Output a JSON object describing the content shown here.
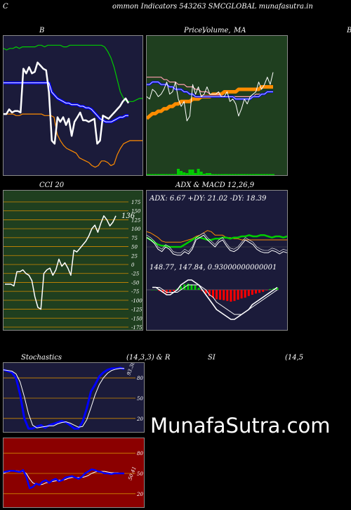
{
  "header": {
    "left_char": "C",
    "title": "ommon  Indicators 543263 SMCGLOBAL  munafasutra.in"
  },
  "labels": {
    "bb": "B",
    "price": "Price,",
    "volume": "Volume,",
    "ma": "MA",
    "right_edge": "B",
    "cci": "CCI 20",
    "adx_macd": "ADX  & MACD 12,26,9",
    "stoch": "Stochastics",
    "stoch_params": "(14,3,3) & R",
    "rsi": "SI",
    "rsi_params": "(14,5"
  },
  "watermark": "MunafaSutra.com",
  "colors": {
    "navy": "#1b1b3a",
    "green_panel": "#1f3f1f",
    "red_panel": "#8b0000",
    "orange": "#ff8c00",
    "blue": "#0000ff",
    "green_line": "#00cc00"
  },
  "chart_data": [
    {
      "type": "line",
      "id": "bollinger",
      "x": [
        1,
        2,
        3,
        4,
        5,
        6,
        7,
        8,
        9,
        10,
        11,
        12,
        13,
        14,
        15,
        16,
        17,
        18,
        19,
        20,
        21,
        22,
        23,
        24,
        25,
        26,
        27,
        28,
        29,
        30,
        31,
        32,
        33,
        34,
        35,
        36,
        37,
        38,
        39,
        40,
        41,
        42,
        43,
        44,
        45
      ],
      "series": [
        {
          "role": "price",
          "values": [
            150,
            150,
            153,
            151,
            152,
            152,
            151,
            179,
            176,
            180,
            176,
            177,
            183,
            181,
            179,
            178,
            164,
            133,
            131,
            148,
            145,
            148,
            143,
            147,
            136,
            145,
            148,
            151,
            146,
            146,
            145,
            146,
            147,
            131,
            133,
            149,
            148,
            147,
            149,
            151,
            153,
            155,
            158,
            160,
            157
          ]
        },
        {
          "role": "upper",
          "values": [
            192,
            191,
            192,
            192,
            193,
            192,
            193,
            193,
            193,
            193,
            193,
            194,
            194,
            193,
            194,
            194,
            194,
            194,
            194,
            193,
            193,
            194,
            194,
            194,
            194,
            194,
            194,
            194,
            194,
            194,
            194,
            194,
            193,
            190,
            186,
            180,
            172,
            164,
            160,
            158,
            158,
            158,
            159,
            160,
            160
          ]
        },
        {
          "role": "middle",
          "values": [
            170,
            170,
            170,
            170,
            170,
            170,
            170,
            170,
            170,
            170,
            170,
            170,
            170,
            170,
            170,
            170,
            170,
            164,
            162,
            160,
            159,
            158,
            157,
            157,
            156,
            156,
            156,
            155,
            155,
            154,
            154,
            153,
            151,
            149,
            147,
            146,
            145,
            145,
            145,
            146,
            147,
            148,
            148,
            149,
            149
          ]
        },
        {
          "role": "lower",
          "values": [
            150,
            150,
            150,
            150,
            149,
            149,
            150,
            150,
            150,
            150,
            150,
            150,
            150,
            149,
            149,
            149,
            148,
            137,
            133,
            130,
            128,
            127,
            126,
            125,
            122,
            121,
            120,
            119,
            117,
            116,
            117,
            120,
            120,
            119,
            117,
            118,
            124,
            128,
            131,
            132,
            133,
            133,
            133,
            133,
            133
          ]
        }
      ]
    },
    {
      "type": "line",
      "id": "price_ma",
      "series": [
        {
          "role": "price",
          "values": [
            150,
            149,
            153,
            152,
            150,
            151,
            153,
            156,
            151,
            152,
            156,
            149,
            146,
            148,
            140,
            142,
            155,
            151,
            154,
            150,
            151,
            154,
            151,
            151,
            151,
            152,
            150,
            150,
            152,
            148,
            149,
            147,
            142,
            145,
            149,
            147,
            150,
            151,
            152,
            156,
            153,
            155,
            158,
            155,
            160
          ]
        },
        {
          "role": "ma_5",
          "values": [
            155,
            155,
            156,
            156,
            156,
            155,
            155,
            155,
            154,
            154,
            153,
            153,
            153,
            152,
            152,
            151,
            151,
            150,
            150,
            150,
            150,
            150,
            150,
            150,
            150,
            150,
            150,
            150,
            150,
            150,
            150,
            149,
            149,
            149,
            149,
            149,
            149,
            150,
            150,
            150,
            151,
            151,
            152,
            152,
            152
          ]
        },
        {
          "role": "ma_10",
          "values": [
            158,
            158,
            158,
            158,
            158,
            158,
            157,
            157,
            156,
            156,
            156,
            155,
            155,
            155,
            154,
            154,
            154,
            153,
            153,
            152,
            152,
            152,
            151,
            151,
            151,
            151,
            150,
            150,
            150,
            150,
            150,
            150,
            150,
            150,
            150,
            150,
            150,
            150,
            151,
            151,
            151,
            151,
            152,
            152,
            152
          ]
        },
        {
          "role": "ma_50",
          "values": [
            141,
            142,
            143,
            143,
            144,
            144,
            145,
            145,
            146,
            146,
            147,
            147,
            148,
            148,
            148,
            148,
            149,
            149,
            149,
            150,
            150,
            150,
            150,
            151,
            151,
            151,
            151,
            152,
            152,
            152,
            152,
            152,
            153,
            153,
            153,
            153,
            153,
            153,
            153,
            153,
            154,
            154,
            154,
            154,
            154
          ]
        },
        {
          "role": "volume",
          "values": [
            0,
            0,
            0,
            0,
            0,
            0,
            0,
            0,
            0,
            0,
            0,
            9,
            6,
            4,
            3,
            8,
            8,
            3,
            9,
            5,
            2,
            3,
            3,
            1,
            0,
            0,
            0,
            0,
            0,
            0,
            0,
            0,
            0,
            0,
            0,
            0,
            0,
            0,
            0,
            0,
            0,
            0,
            0,
            0,
            0
          ]
        }
      ]
    },
    {
      "type": "line",
      "id": "cci",
      "ylim": [
        -175,
        175
      ],
      "yticks": [
        175,
        150,
        125,
        100,
        75,
        50,
        25,
        0,
        -25,
        -50,
        -75,
        -100,
        -125,
        -150,
        -175
      ],
      "value_label": "136",
      "series": [
        {
          "role": "cci",
          "values": [
            -55,
            -55,
            -55,
            -60,
            -20,
            -20,
            -15,
            -25,
            -30,
            -45,
            -90,
            -120,
            -125,
            -25,
            -15,
            -10,
            -30,
            -15,
            15,
            -5,
            5,
            -10,
            -30,
            40,
            35,
            45,
            55,
            65,
            80,
            100,
            110,
            90,
            115,
            136,
            125,
            108,
            118,
            136
          ]
        }
      ]
    },
    {
      "type": "line",
      "id": "adx",
      "value_label": "ADX: 6.67  +DY: 21.02  -DY: 18.39",
      "series": [
        {
          "role": "adx",
          "values": [
            20,
            18,
            15,
            10,
            8,
            12,
            10,
            6,
            5,
            5,
            8,
            6,
            10,
            18,
            20,
            22,
            18,
            15,
            12,
            16,
            18,
            13,
            9,
            8,
            10,
            14,
            18,
            16,
            14,
            10,
            8,
            7,
            7,
            9,
            8,
            6,
            8,
            7
          ]
        },
        {
          "role": "plus_di",
          "values": [
            20,
            18,
            16,
            14,
            13,
            13,
            12,
            12,
            12,
            12,
            14,
            16,
            18,
            20,
            20,
            19,
            18,
            18,
            19,
            19,
            20,
            20,
            19,
            20,
            20,
            21,
            21,
            22,
            21,
            21,
            22,
            22,
            21,
            20,
            21,
            21,
            20,
            21
          ]
        },
        {
          "role": "minus_di",
          "values": [
            25,
            24,
            22,
            20,
            17,
            16,
            16,
            16,
            16,
            16,
            17,
            18,
            19,
            21,
            22,
            24,
            26,
            25,
            22,
            22,
            22,
            20,
            20,
            19,
            19,
            18,
            18,
            18,
            18,
            18,
            18,
            18,
            18,
            18,
            18,
            18,
            18,
            18
          ]
        }
      ]
    },
    {
      "type": "bar",
      "id": "macd",
      "value_label": "148.77,  147.84,  0.93000000000001",
      "series": [
        {
          "role": "histogram",
          "values": [
            0,
            0,
            -0.5,
            -1.2,
            -1.5,
            -1.2,
            -0.5,
            0.5,
            1.5,
            2.2,
            2.5,
            2.2,
            1.8,
            0.8,
            -0.5,
            -1.5,
            -2.5,
            -3.2,
            -3.8,
            -4.0,
            -4.2,
            -4.5,
            -4.8,
            -4.5,
            -4.0,
            -3.5,
            -3.2,
            -2.5,
            -2.0,
            -1.5,
            -1.2,
            -0.8,
            -0.2,
            0.3,
            0.6,
            0.8
          ]
        },
        {
          "role": "macd",
          "values": [
            1,
            1,
            0,
            -1,
            -2,
            -2,
            -1,
            0,
            2,
            3,
            4,
            4,
            3,
            2,
            0,
            -2,
            -4,
            -6,
            -8,
            -9,
            -10,
            -11,
            -12,
            -12,
            -11,
            -10,
            -9,
            -8,
            -6,
            -5,
            -4,
            -3,
            -2,
            -1,
            0,
            1
          ]
        },
        {
          "role": "signal",
          "values": [
            1,
            1,
            1,
            0,
            -1,
            -1,
            -1,
            -1,
            0,
            1,
            2,
            2,
            2,
            2,
            1,
            0,
            -2,
            -3,
            -5,
            -6,
            -7,
            -8,
            -9,
            -10,
            -10,
            -10,
            -9,
            -8,
            -7,
            -6,
            -5,
            -4,
            -3,
            -2,
            -1,
            0
          ]
        }
      ]
    },
    {
      "type": "line",
      "id": "stochastics",
      "ylim": [
        0,
        100
      ],
      "yticks": [
        80,
        50,
        20
      ],
      "value_label": "93.38",
      "series": [
        {
          "role": "k",
          "values": [
            92,
            90,
            88,
            80,
            55,
            20,
            5,
            5,
            8,
            10,
            6,
            10,
            12,
            14,
            16,
            14,
            10,
            5,
            5,
            15,
            35,
            60,
            70,
            82,
            88,
            92,
            94,
            94,
            95,
            93
          ]
        },
        {
          "role": "d",
          "values": [
            92,
            91,
            90,
            86,
            74,
            52,
            27,
            10,
            6,
            7,
            8,
            9,
            9,
            12,
            14,
            15,
            13,
            10,
            7,
            8,
            18,
            36,
            55,
            70,
            80,
            87,
            91,
            93,
            94,
            94
          ]
        }
      ]
    },
    {
      "type": "line",
      "id": "rsi",
      "ylim": [
        0,
        100
      ],
      "yticks": [
        80,
        50,
        20
      ],
      "value_label": "50.41",
      "series": [
        {
          "role": "rsi",
          "values": [
            52,
            53,
            54,
            54,
            53,
            52,
            55,
            45,
            28,
            30,
            35,
            33,
            38,
            40,
            36,
            40,
            42,
            38,
            40,
            44,
            45,
            46,
            44,
            42,
            45,
            50,
            53,
            56,
            55,
            53,
            52,
            50,
            50,
            49,
            50,
            50,
            50,
            50
          ]
        },
        {
          "role": "rsi_smooth",
          "values": [
            50,
            52,
            53,
            54,
            54,
            53,
            53,
            50,
            42,
            36,
            34,
            33,
            34,
            36,
            37,
            38,
            39,
            40,
            40,
            41,
            43,
            44,
            44,
            44,
            44,
            45,
            47,
            50,
            52,
            53,
            53,
            53,
            52,
            51,
            51,
            51,
            50,
            50
          ]
        }
      ]
    }
  ]
}
